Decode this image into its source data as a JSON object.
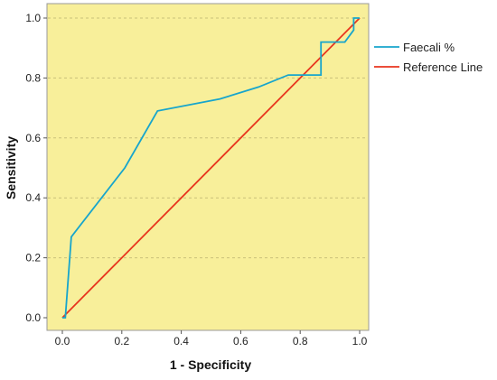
{
  "chart_data": {
    "type": "line",
    "xlabel": "1 - Specificity",
    "ylabel": "Sensitivity",
    "xlim": [
      0,
      1
    ],
    "ylim": [
      0,
      1
    ],
    "x_ticks": [
      "0.0",
      "0.2",
      "0.4",
      "0.6",
      "0.8",
      "1.0"
    ],
    "y_ticks": [
      "0.0",
      "0.2",
      "0.4",
      "0.6",
      "0.8",
      "1.0"
    ],
    "grid": "horizontal dashed",
    "legend_position": "right",
    "plot_background": "#f8ef9a",
    "series": [
      {
        "name": "Faecali %",
        "color": "#17a5cc",
        "points": [
          [
            0.0,
            0.0
          ],
          [
            0.01,
            0.0
          ],
          [
            0.03,
            0.27
          ],
          [
            0.21,
            0.5
          ],
          [
            0.32,
            0.69
          ],
          [
            0.53,
            0.73
          ],
          [
            0.66,
            0.77
          ],
          [
            0.76,
            0.81
          ],
          [
            0.87,
            0.81
          ],
          [
            0.87,
            0.92
          ],
          [
            0.95,
            0.92
          ],
          [
            0.98,
            0.96
          ],
          [
            0.98,
            1.0
          ],
          [
            1.0,
            1.0
          ]
        ]
      },
      {
        "name": "Reference Line",
        "color": "#e8351e",
        "points": [
          [
            0.0,
            0.0
          ],
          [
            1.0,
            1.0
          ]
        ]
      }
    ]
  }
}
